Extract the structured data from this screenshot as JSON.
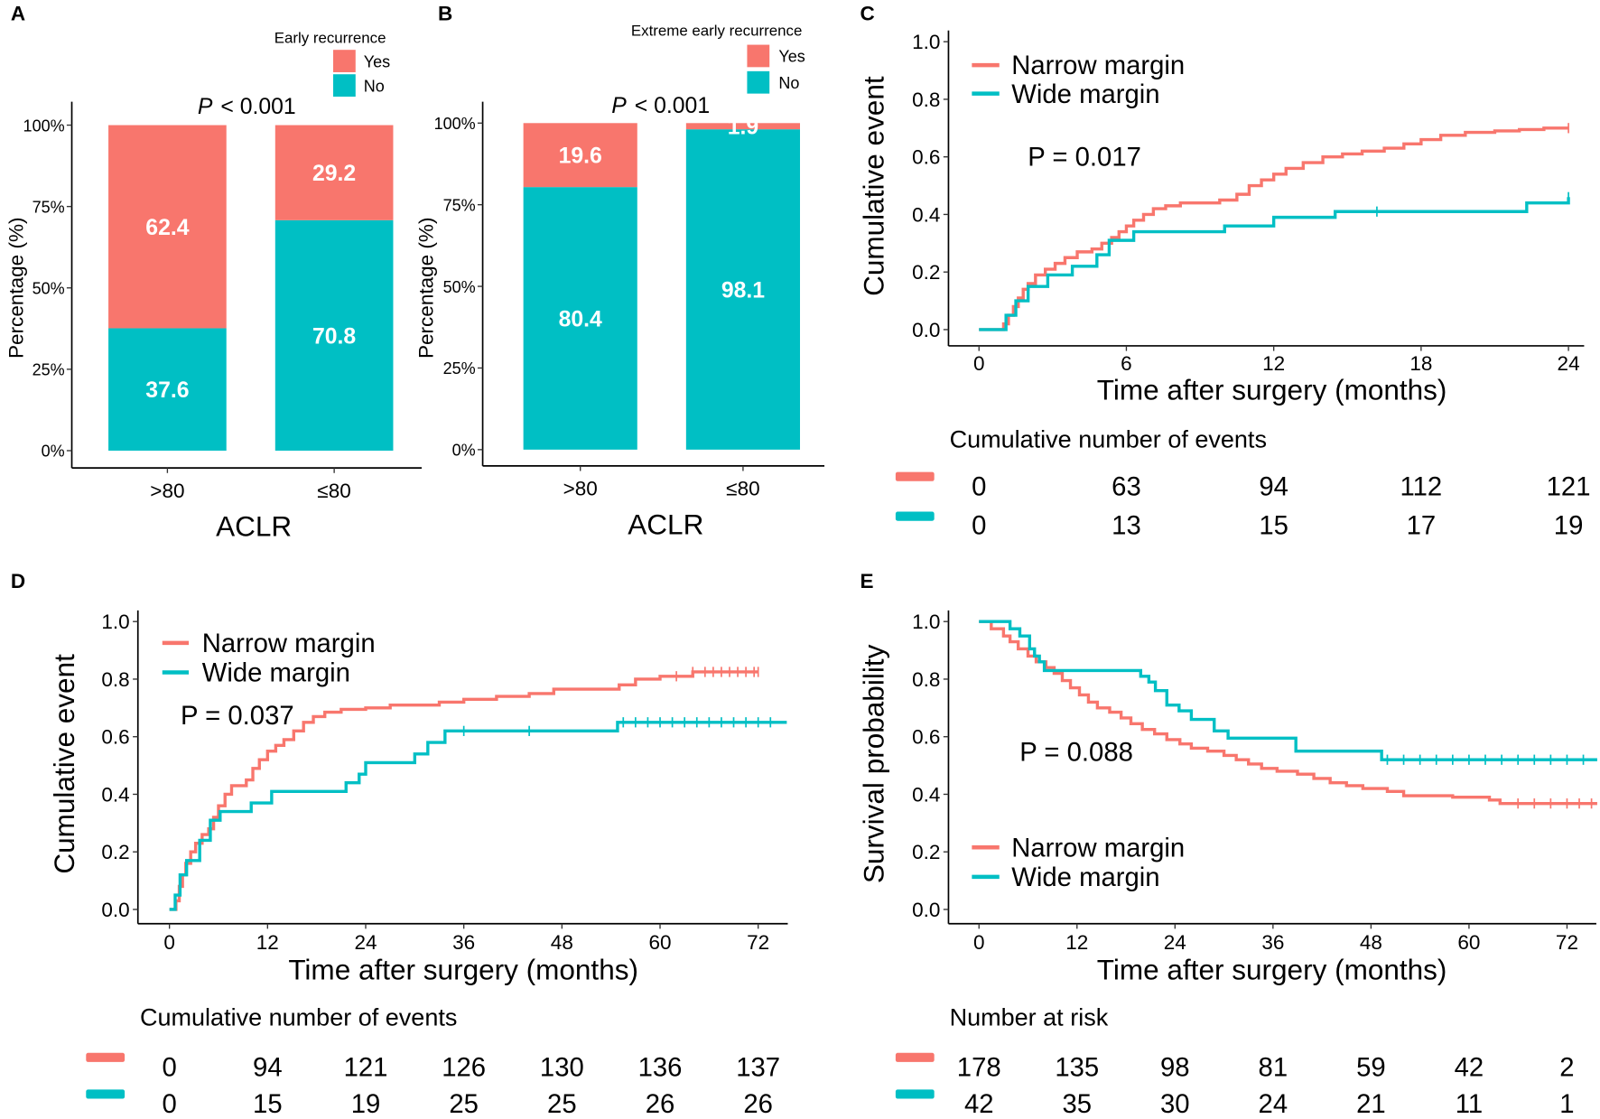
{
  "colors": {
    "narrow": "#F8766D",
    "wide": "#00BFC4",
    "ink": "#000000",
    "bar_label": "#FFFFFF"
  },
  "chart_data": [
    {
      "panel_label": "A",
      "type": "bar",
      "stacked": true,
      "categories": [
        ">80",
        "≤80"
      ],
      "series": [
        {
          "name": "Yes",
          "values": [
            62.4,
            29.2
          ],
          "color": "#F8766D"
        },
        {
          "name": "No",
          "values": [
            37.6,
            70.8
          ],
          "color": "#00BFC4"
        }
      ],
      "legend_title": "Early recurrence",
      "legend": "top-right",
      "p_symbol": "P",
      "p_value": "< 0.001",
      "xlabel": "ACLR",
      "ylabel": "Percentage (%)",
      "ylim": [
        0,
        100
      ],
      "yticks": [
        0,
        25,
        50,
        75,
        100
      ],
      "ytick_labels": [
        "0%",
        "25%",
        "50%",
        "75%",
        "100%"
      ]
    },
    {
      "panel_label": "B",
      "type": "bar",
      "stacked": true,
      "categories": [
        ">80",
        "≤80"
      ],
      "series": [
        {
          "name": "Yes",
          "values": [
            19.6,
            1.9
          ],
          "color": "#F8766D"
        },
        {
          "name": "No",
          "values": [
            80.4,
            98.1
          ],
          "color": "#00BFC4"
        }
      ],
      "legend_title": "Extreme early recurrence",
      "legend": "top-right",
      "p_symbol": "P",
      "p_value": "< 0.001",
      "xlabel": "ACLR",
      "ylabel": "Percentage (%)",
      "ylim": [
        0,
        100
      ],
      "yticks": [
        0,
        25,
        50,
        75,
        100
      ],
      "ytick_labels": [
        "0%",
        "25%",
        "50%",
        "75%",
        "100%"
      ]
    },
    {
      "panel_label": "C",
      "type": "line",
      "xlabel": "Time after surgery (months)",
      "ylabel": "Cumulative event",
      "xlim": [
        0,
        24
      ],
      "ylim": [
        0,
        1
      ],
      "xticks": [
        0,
        6,
        12,
        18,
        24
      ],
      "yticks": [
        0,
        0.2,
        0.4,
        0.6,
        0.8,
        1.0
      ],
      "ytick_labels": [
        "0.0",
        "0.2",
        "0.4",
        "0.6",
        "0.8",
        "1.0"
      ],
      "legend": "top-left",
      "p_text": "P = 0.017",
      "series": [
        {
          "name": "Narrow margin",
          "color": "#F8766D",
          "t_end": 24,
          "points": [
            [
              0,
              0
            ],
            [
              1.0,
              0.02
            ],
            [
              1.2,
              0.05
            ],
            [
              1.4,
              0.08
            ],
            [
              1.6,
              0.11
            ],
            [
              1.8,
              0.14
            ],
            [
              2.0,
              0.16
            ],
            [
              2.3,
              0.19
            ],
            [
              2.7,
              0.21
            ],
            [
              3.1,
              0.23
            ],
            [
              3.5,
              0.25
            ],
            [
              4.0,
              0.27
            ],
            [
              4.6,
              0.28
            ],
            [
              5.0,
              0.3
            ],
            [
              5.4,
              0.32
            ],
            [
              5.7,
              0.34
            ],
            [
              6.0,
              0.36
            ],
            [
              6.3,
              0.38
            ],
            [
              6.7,
              0.4
            ],
            [
              7.1,
              0.42
            ],
            [
              7.6,
              0.43
            ],
            [
              8.2,
              0.44
            ],
            [
              9.8,
              0.45
            ],
            [
              10.5,
              0.47
            ],
            [
              11.0,
              0.5
            ],
            [
              11.5,
              0.52
            ],
            [
              12.0,
              0.54
            ],
            [
              12.5,
              0.56
            ],
            [
              13.2,
              0.58
            ],
            [
              14.0,
              0.6
            ],
            [
              14.8,
              0.61
            ],
            [
              15.6,
              0.62
            ],
            [
              16.5,
              0.63
            ],
            [
              17.3,
              0.645
            ],
            [
              18.0,
              0.66
            ],
            [
              18.8,
              0.675
            ],
            [
              19.8,
              0.685
            ],
            [
              21.0,
              0.69
            ],
            [
              22.0,
              0.695
            ],
            [
              23.0,
              0.7
            ]
          ],
          "censored": [
            24
          ]
        },
        {
          "name": "Wide margin",
          "color": "#00BFC4",
          "t_end": 24,
          "points": [
            [
              0,
              0
            ],
            [
              1.1,
              0.05
            ],
            [
              1.5,
              0.1
            ],
            [
              2.0,
              0.15
            ],
            [
              2.8,
              0.19
            ],
            [
              3.8,
              0.22
            ],
            [
              4.8,
              0.26
            ],
            [
              5.3,
              0.31
            ],
            [
              6.3,
              0.34
            ],
            [
              10.0,
              0.36
            ],
            [
              12.0,
              0.39
            ],
            [
              14.5,
              0.41
            ],
            [
              22.3,
              0.44
            ],
            [
              24.0,
              0.46
            ]
          ],
          "censored": [
            16.2,
            24
          ]
        }
      ],
      "risk_table": {
        "title": "Cumulative number of events",
        "times": [
          0,
          6,
          12,
          18,
          24
        ],
        "rows": [
          {
            "series_index": 0,
            "values": [
              0,
              63,
              94,
              112,
              121
            ]
          },
          {
            "series_index": 1,
            "values": [
              0,
              13,
              15,
              17,
              19
            ]
          }
        ]
      }
    },
    {
      "panel_label": "D",
      "type": "line",
      "xlabel": "Time after surgery (months)",
      "ylabel": "Cumulative event",
      "xlim": [
        0,
        72
      ],
      "ylim": [
        0,
        1
      ],
      "xticks": [
        0,
        12,
        24,
        36,
        48,
        60,
        72
      ],
      "yticks": [
        0,
        0.2,
        0.4,
        0.6,
        0.8,
        1.0
      ],
      "ytick_labels": [
        "0.0",
        "0.2",
        "0.4",
        "0.6",
        "0.8",
        "1.0"
      ],
      "legend": "top-left",
      "p_text": "P = 0.037",
      "series": [
        {
          "name": "Narrow margin",
          "color": "#F8766D",
          "t_end": 72,
          "points": [
            [
              0,
              0
            ],
            [
              0.8,
              0.03
            ],
            [
              1.2,
              0.08
            ],
            [
              1.6,
              0.12
            ],
            [
              2.0,
              0.16
            ],
            [
              2.6,
              0.2
            ],
            [
              3.2,
              0.23
            ],
            [
              4.0,
              0.26
            ],
            [
              4.8,
              0.28
            ],
            [
              5.4,
              0.32
            ],
            [
              6.0,
              0.36
            ],
            [
              6.8,
              0.4
            ],
            [
              7.6,
              0.43
            ],
            [
              9.4,
              0.45
            ],
            [
              10.2,
              0.49
            ],
            [
              11.0,
              0.52
            ],
            [
              12.0,
              0.55
            ],
            [
              13.0,
              0.57
            ],
            [
              14.0,
              0.59
            ],
            [
              15.2,
              0.62
            ],
            [
              16.4,
              0.65
            ],
            [
              17.6,
              0.67
            ],
            [
              19.0,
              0.685
            ],
            [
              21.0,
              0.695
            ],
            [
              24.0,
              0.7
            ],
            [
              27.0,
              0.71
            ],
            [
              33.0,
              0.72
            ],
            [
              36.0,
              0.73
            ],
            [
              40.0,
              0.74
            ],
            [
              44.0,
              0.75
            ],
            [
              47.0,
              0.765
            ],
            [
              55.0,
              0.78
            ],
            [
              57.0,
              0.8
            ],
            [
              60.0,
              0.81
            ],
            [
              64.0,
              0.825
            ]
          ],
          "censored": [
            62,
            64,
            65.5,
            66.5,
            67.5,
            68.5,
            69.5,
            70.5,
            71.5,
            72
          ]
        },
        {
          "name": "Wide margin",
          "color": "#00BFC4",
          "t_end": 75.5,
          "points": [
            [
              0,
              0
            ],
            [
              0.7,
              0.05
            ],
            [
              1.3,
              0.12
            ],
            [
              2.1,
              0.17
            ],
            [
              3.7,
              0.24
            ],
            [
              5.0,
              0.31
            ],
            [
              6.2,
              0.34
            ],
            [
              10.0,
              0.37
            ],
            [
              12.5,
              0.41
            ],
            [
              21.6,
              0.44
            ],
            [
              23.2,
              0.47
            ],
            [
              24.0,
              0.51
            ],
            [
              30.0,
              0.54
            ],
            [
              31.6,
              0.58
            ],
            [
              33.7,
              0.62
            ],
            [
              54.8,
              0.65
            ]
          ],
          "censored": [
            36,
            44,
            55.5,
            57,
            58.5,
            60,
            61.5,
            63,
            64.5,
            66,
            67.5,
            69,
            70.5,
            72,
            73.5
          ]
        }
      ],
      "risk_table": {
        "title": "Cumulative number of events",
        "times": [
          0,
          12,
          24,
          36,
          48,
          60,
          72
        ],
        "rows": [
          {
            "series_index": 0,
            "values": [
              0,
              94,
              121,
              126,
              130,
              136,
              137
            ]
          },
          {
            "series_index": 1,
            "values": [
              0,
              15,
              19,
              25,
              25,
              26,
              26
            ]
          }
        ]
      }
    },
    {
      "panel_label": "E",
      "type": "line",
      "xlabel": "Time after surgery (months)",
      "ylabel": "Survival probability",
      "xlim": [
        0,
        72
      ],
      "ylim": [
        0,
        1
      ],
      "xticks": [
        0,
        12,
        24,
        36,
        48,
        60,
        72
      ],
      "yticks": [
        0,
        0.2,
        0.4,
        0.6,
        0.8,
        1.0
      ],
      "ytick_labels": [
        "0.0",
        "0.2",
        "0.4",
        "0.6",
        "0.8",
        "1.0"
      ],
      "legend": "bottom-left",
      "p_text": "P = 0.088",
      "series": [
        {
          "name": "Narrow margin",
          "color": "#F8766D",
          "t_end": 75.7,
          "points": [
            [
              0,
              1.0
            ],
            [
              1.5,
              0.975
            ],
            [
              3.0,
              0.95
            ],
            [
              3.8,
              0.93
            ],
            [
              4.8,
              0.905
            ],
            [
              6.0,
              0.88
            ],
            [
              7.0,
              0.86
            ],
            [
              8.2,
              0.84
            ],
            [
              9.2,
              0.82
            ],
            [
              10.2,
              0.795
            ],
            [
              11.2,
              0.77
            ],
            [
              12.3,
              0.745
            ],
            [
              13.4,
              0.72
            ],
            [
              14.5,
              0.7
            ],
            [
              16.0,
              0.685
            ],
            [
              17.4,
              0.665
            ],
            [
              18.6,
              0.645
            ],
            [
              20.0,
              0.625
            ],
            [
              21.5,
              0.61
            ],
            [
              23.0,
              0.59
            ],
            [
              24.6,
              0.575
            ],
            [
              26.0,
              0.56
            ],
            [
              28.0,
              0.55
            ],
            [
              30.0,
              0.535
            ],
            [
              31.5,
              0.52
            ],
            [
              33.0,
              0.505
            ],
            [
              34.6,
              0.49
            ],
            [
              36.5,
              0.48
            ],
            [
              39.0,
              0.47
            ],
            [
              41.0,
              0.455
            ],
            [
              43.0,
              0.44
            ],
            [
              45.0,
              0.43
            ],
            [
              47.0,
              0.42
            ],
            [
              50.0,
              0.41
            ],
            [
              52.0,
              0.395
            ],
            [
              58.0,
              0.39
            ],
            [
              62.5,
              0.38
            ],
            [
              63.8,
              0.368
            ]
          ],
          "censored": [
            66,
            68,
            70,
            72,
            73.5,
            75
          ]
        },
        {
          "name": "Wide margin",
          "color": "#00BFC4",
          "t_end": 75.7,
          "points": [
            [
              0,
              1.0
            ],
            [
              3.8,
              0.975
            ],
            [
              5.0,
              0.95
            ],
            [
              6.2,
              0.905
            ],
            [
              6.8,
              0.88
            ],
            [
              7.4,
              0.86
            ],
            [
              8.0,
              0.83
            ],
            [
              19.8,
              0.81
            ],
            [
              20.8,
              0.79
            ],
            [
              21.6,
              0.76
            ],
            [
              23.0,
              0.71
            ],
            [
              24.5,
              0.69
            ],
            [
              26.0,
              0.66
            ],
            [
              28.8,
              0.62
            ],
            [
              30.5,
              0.595
            ],
            [
              38.8,
              0.55
            ],
            [
              49.3,
              0.52
            ]
          ],
          "censored": [
            50,
            52,
            54,
            56,
            58,
            60,
            62,
            64,
            66,
            68,
            70,
            72,
            74
          ]
        }
      ],
      "risk_table": {
        "title": "Number at risk",
        "times": [
          0,
          12,
          24,
          36,
          48,
          60,
          72
        ],
        "rows": [
          {
            "series_index": 0,
            "values": [
              178,
              135,
              98,
              81,
              59,
              42,
              2
            ]
          },
          {
            "series_index": 1,
            "values": [
              42,
              35,
              30,
              24,
              21,
              11,
              1
            ]
          }
        ]
      }
    }
  ]
}
